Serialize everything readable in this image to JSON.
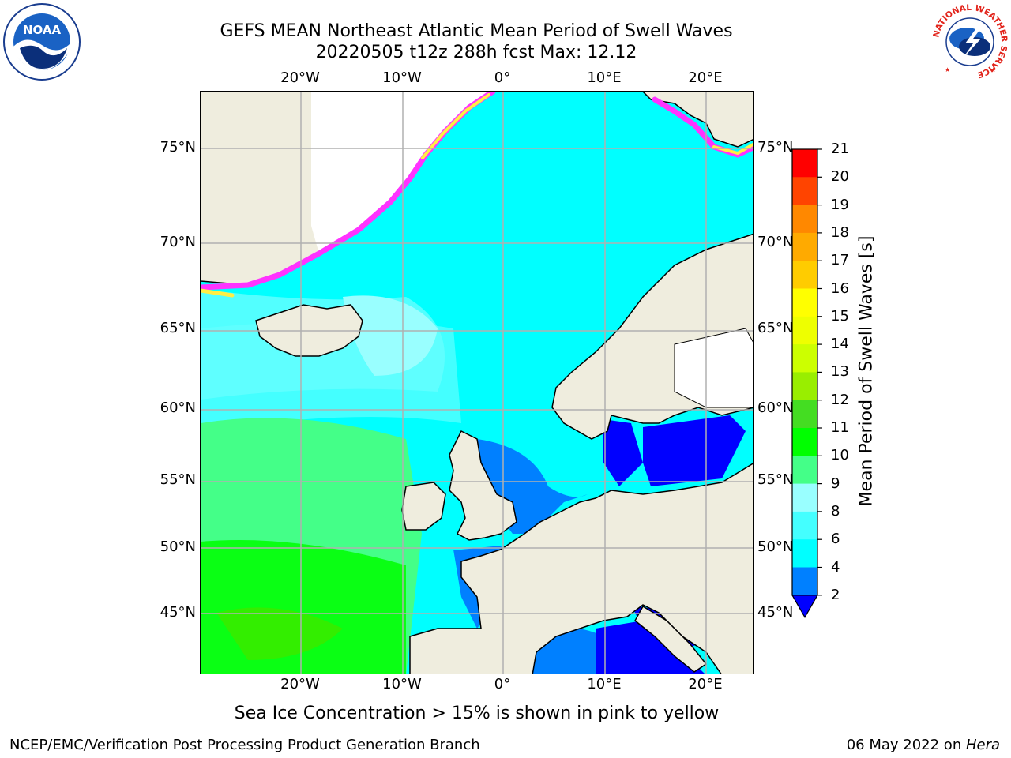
{
  "title": {
    "line1": "GEFS MEAN Northeast Atlantic Mean Period of Swell Waves",
    "line2": "20220505 t12z 288h fcst   Max: 12.12"
  },
  "logos": {
    "left": "NOAA",
    "right_ring_text": "NATIONAL WEATHER SERVICE"
  },
  "map": {
    "lat_labels": [
      "75°N",
      "70°N",
      "65°N",
      "60°N",
      "55°N",
      "50°N",
      "45°N"
    ],
    "lon_labels": [
      "20°W",
      "10°W",
      "0°",
      "10°E",
      "20°E"
    ],
    "colors": {
      "land": "#efedde",
      "coast": "#000000",
      "grid": "#b0b0b0",
      "ice_pink": "#ff33ff",
      "ice_yellow": "#ffee44"
    }
  },
  "colorbar": {
    "label": "Mean Period of Swell Waves [s]",
    "ticks": [
      "2",
      "4",
      "6",
      "8",
      "9",
      "10",
      "11",
      "12",
      "13",
      "14",
      "15",
      "16",
      "17",
      "18",
      "19",
      "20",
      "21"
    ],
    "colors": [
      "#0000ff",
      "#0080ff",
      "#00ffff",
      "#44ffff",
      "#99ffff",
      "#44ff88",
      "#00ff00",
      "#44dd22",
      "#99ee00",
      "#ccff00",
      "#eeff00",
      "#ffff00",
      "#ffcc00",
      "#ffaa00",
      "#ff8800",
      "#ff4400",
      "#ff0000"
    ]
  },
  "note": "Sea Ice Concentration > 15% is shown in pink to yellow",
  "footer": {
    "left": "NCEP/EMC/Verification Post Processing Product Generation Branch",
    "date": "06 May 2022 on ",
    "host": "Hera"
  }
}
